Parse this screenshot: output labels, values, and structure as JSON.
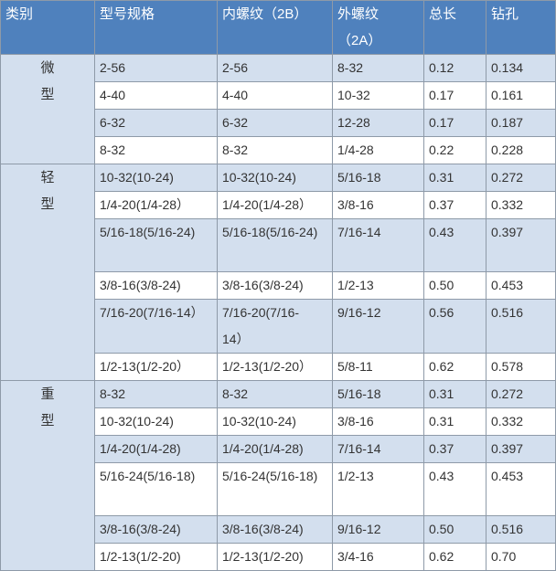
{
  "headers": [
    "类别",
    "型号规格",
    "内螺纹（2B）",
    "外螺纹（2A）",
    "总长",
    "钻孔"
  ],
  "groups": [
    {
      "category": [
        "微",
        "型"
      ],
      "rows": [
        [
          "2-56",
          "2-56",
          "8-32",
          "0.12",
          "0.134"
        ],
        [
          "4-40",
          "4-40",
          "10-32",
          "0.17",
          "0.161"
        ],
        [
          "6-32",
          "6-32",
          "12-28",
          "0.17",
          "0.187"
        ],
        [
          "8-32",
          "8-32",
          "1/4-28",
          "0.22",
          "0.228"
        ]
      ]
    },
    {
      "category": [
        "轻",
        "型"
      ],
      "rows": [
        [
          "10-32(10-24)",
          "10-32(10-24)",
          "5/16-18",
          "0.31",
          "0.272"
        ],
        [
          "1/4-20(1/4-28）",
          "1/4-20(1/4-28）",
          "3/8-16",
          "0.37",
          "0.332"
        ],
        [
          "5/16-18(5/16-24)",
          "5/16-18(5/16-24)",
          "7/16-14",
          "0.43",
          "0.397"
        ],
        [
          "3/8-16(3/8-24)",
          "3/8-16(3/8-24)",
          "1/2-13",
          "0.50",
          "0.453"
        ],
        [
          "7/16-20(7/16-14）",
          "7/16-20(7/16-14）",
          "9/16-12",
          "0.56",
          "0.516"
        ],
        [
          "1/2-13(1/2-20）",
          "1/2-13(1/2-20）",
          "5/8-11",
          "0.62",
          "0.578"
        ]
      ]
    },
    {
      "category": [
        "重",
        "型"
      ],
      "rows": [
        [
          "8-32",
          "8-32",
          "5/16-18",
          "0.31",
          "0.272"
        ],
        [
          "10-32(10-24)",
          "10-32(10-24)",
          "3/8-16",
          "0.31",
          "0.332"
        ],
        [
          "1/4-20(1/4-28)",
          "1/4-20(1/4-28)",
          "7/16-14",
          "0.37",
          "0.397"
        ],
        [
          "5/16-24(5/16-18)",
          "5/16-24(5/16-18)",
          "1/2-13",
          "0.43",
          "0.453"
        ],
        [
          "3/8-16(3/8-24)",
          "3/8-16(3/8-24)",
          "9/16-12",
          "0.50",
          "0.516"
        ],
        [
          "1/2-13(1/2-20)",
          "1/2-13(1/2-20)",
          "3/4-16",
          "0.62",
          "0.70"
        ]
      ]
    }
  ],
  "colors": {
    "header": "#4f81bd",
    "stripe": "#d3dfee"
  }
}
